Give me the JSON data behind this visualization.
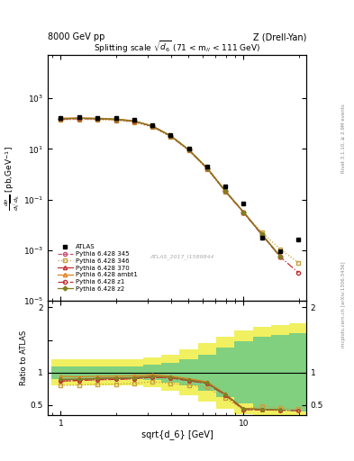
{
  "atlas_x": [
    1.0,
    1.26,
    1.585,
    2.0,
    2.512,
    3.162,
    3.981,
    5.012,
    6.31,
    7.943,
    10.0,
    12.59,
    15.85,
    19.95
  ],
  "atlas_y": [
    175,
    182,
    175,
    162,
    138,
    85,
    36,
    10.5,
    2.1,
    0.33,
    0.072,
    0.0032,
    0.0009,
    0.0027
  ],
  "p345_x": [
    1.0,
    1.26,
    1.585,
    2.0,
    2.512,
    3.162,
    3.981,
    5.012,
    6.31,
    7.943,
    10.0,
    12.59,
    15.85
  ],
  "p345_y": [
    152,
    160,
    156,
    145,
    125,
    79,
    33,
    9.2,
    1.75,
    0.215,
    0.031,
    0.0041,
    0.00055
  ],
  "p346_x": [
    1.0,
    1.26,
    1.585,
    2.0,
    2.512,
    3.162,
    3.981,
    5.012,
    6.31,
    7.943,
    10.0,
    12.59,
    15.85,
    19.95
  ],
  "p346_y": [
    140,
    147,
    143,
    133,
    115,
    73,
    30,
    8.5,
    1.62,
    0.2,
    0.031,
    0.0052,
    0.0011,
    0.00032
  ],
  "p370_x": [
    1.0,
    1.26,
    1.585,
    2.0,
    2.512,
    3.162,
    3.981,
    5.012,
    6.31,
    7.943,
    10.0,
    12.59,
    15.85
  ],
  "p370_y": [
    156,
    163,
    159,
    148,
    127,
    80,
    33.5,
    9.3,
    1.77,
    0.22,
    0.032,
    0.0042,
    0.00058
  ],
  "pambt_x": [
    1.0,
    1.26,
    1.585,
    2.0,
    2.512,
    3.162,
    3.981,
    5.012,
    6.31,
    7.943,
    10.0,
    12.59,
    15.85
  ],
  "pambt_y": [
    165,
    170,
    165,
    153,
    131,
    82,
    34,
    9.5,
    1.8,
    0.222,
    0.032,
    0.0042,
    0.00059
  ],
  "pz1_x": [
    1.0,
    1.26,
    1.585,
    2.0,
    2.512,
    3.162,
    3.981,
    5.012,
    6.31,
    7.943,
    10.0,
    12.59,
    15.85,
    19.95
  ],
  "pz1_y": [
    152,
    160,
    156,
    145,
    125,
    79,
    33,
    9.2,
    1.75,
    0.215,
    0.031,
    0.0041,
    0.00055,
    0.00013
  ],
  "pz2_x": [
    1.0,
    1.26,
    1.585,
    2.0,
    2.512,
    3.162,
    3.981,
    5.012,
    6.31,
    7.943,
    10.0,
    12.59,
    15.85
  ],
  "pz2_y": [
    157,
    163,
    159,
    148,
    127,
    80,
    33.5,
    9.3,
    1.77,
    0.22,
    0.032,
    0.0042,
    0.00058
  ],
  "ratio_atlas_x": [
    1.0,
    1.26,
    1.585,
    2.0,
    2.512,
    3.162,
    3.981,
    5.012,
    6.31,
    7.943,
    10.0,
    12.59,
    15.85,
    19.95
  ],
  "ratio_green_lo": [
    0.9,
    0.9,
    0.9,
    0.9,
    0.9,
    0.88,
    0.85,
    0.8,
    0.72,
    0.62,
    0.52,
    0.45,
    0.42,
    0.4
  ],
  "ratio_green_hi": [
    1.1,
    1.1,
    1.1,
    1.1,
    1.1,
    1.12,
    1.15,
    1.2,
    1.28,
    1.38,
    1.48,
    1.55,
    1.58,
    1.6
  ],
  "ratio_yellow_lo": [
    0.8,
    0.8,
    0.8,
    0.8,
    0.8,
    0.77,
    0.72,
    0.65,
    0.55,
    0.45,
    0.36,
    0.3,
    0.27,
    0.25
  ],
  "ratio_yellow_hi": [
    1.2,
    1.2,
    1.2,
    1.2,
    1.2,
    1.23,
    1.28,
    1.35,
    1.45,
    1.55,
    1.64,
    1.7,
    1.73,
    1.75
  ],
  "ratio_p345_x": [
    1.0,
    1.26,
    1.585,
    2.0,
    2.512,
    3.162,
    3.981,
    5.012,
    6.31,
    7.943,
    10.0,
    12.59,
    15.85
  ],
  "ratio_p345_y": [
    0.869,
    0.879,
    0.891,
    0.895,
    0.906,
    0.929,
    0.917,
    0.876,
    0.833,
    0.652,
    0.431,
    0.428,
    0.422
  ],
  "ratio_p346_x": [
    1.0,
    1.26,
    1.585,
    2.0,
    2.512,
    3.162,
    3.981,
    5.012,
    6.31,
    7.943,
    10.0,
    12.59,
    15.85,
    19.95
  ],
  "ratio_p346_y": [
    0.8,
    0.808,
    0.817,
    0.821,
    0.833,
    0.859,
    0.833,
    0.81,
    0.771,
    0.606,
    0.431,
    0.488,
    0.455,
    0.442
  ],
  "ratio_p370_x": [
    1.0,
    1.26,
    1.585,
    2.0,
    2.512,
    3.162,
    3.981,
    5.012,
    6.31,
    7.943,
    10.0,
    12.59,
    15.85
  ],
  "ratio_p370_y": [
    0.891,
    0.896,
    0.909,
    0.914,
    0.92,
    0.941,
    0.931,
    0.886,
    0.843,
    0.667,
    0.444,
    0.436,
    0.428
  ],
  "ratio_pambt_x": [
    1.0,
    1.26,
    1.585,
    2.0,
    2.512,
    3.162,
    3.981,
    5.012,
    6.31,
    7.943,
    10.0,
    12.59,
    15.85
  ],
  "ratio_pambt_y": [
    0.943,
    0.934,
    0.943,
    0.944,
    0.95,
    0.965,
    0.944,
    0.905,
    0.857,
    0.673,
    0.444,
    0.436,
    0.428
  ],
  "ratio_pz1_x": [
    1.0,
    1.26,
    1.585,
    2.0,
    2.512,
    3.162,
    3.981,
    5.012,
    6.31,
    7.943,
    10.0,
    12.59,
    15.85,
    19.95
  ],
  "ratio_pz1_y": [
    0.869,
    0.879,
    0.891,
    0.895,
    0.906,
    0.929,
    0.917,
    0.876,
    0.833,
    0.652,
    0.431,
    0.428,
    0.422,
    0.415
  ],
  "ratio_pz2_x": [
    1.0,
    1.26,
    1.585,
    2.0,
    2.512,
    3.162,
    3.981,
    5.012,
    6.31,
    7.943,
    10.0,
    12.59,
    15.85
  ],
  "ratio_pz2_y": [
    0.897,
    0.896,
    0.909,
    0.914,
    0.92,
    0.941,
    0.931,
    0.886,
    0.843,
    0.667,
    0.444,
    0.436,
    0.428
  ],
  "color_345": "#c8507a",
  "color_346": "#c8a040",
  "color_370": "#c03030",
  "color_ambt": "#e08020",
  "color_z1": "#c03030",
  "color_z2": "#808020",
  "green_color": "#80d080",
  "yellow_color": "#f0f060",
  "ylim_main": [
    1e-05,
    50000.0
  ],
  "ylim_ratio": [
    0.35,
    2.1
  ],
  "xlim": [
    0.85,
    22.0
  ]
}
